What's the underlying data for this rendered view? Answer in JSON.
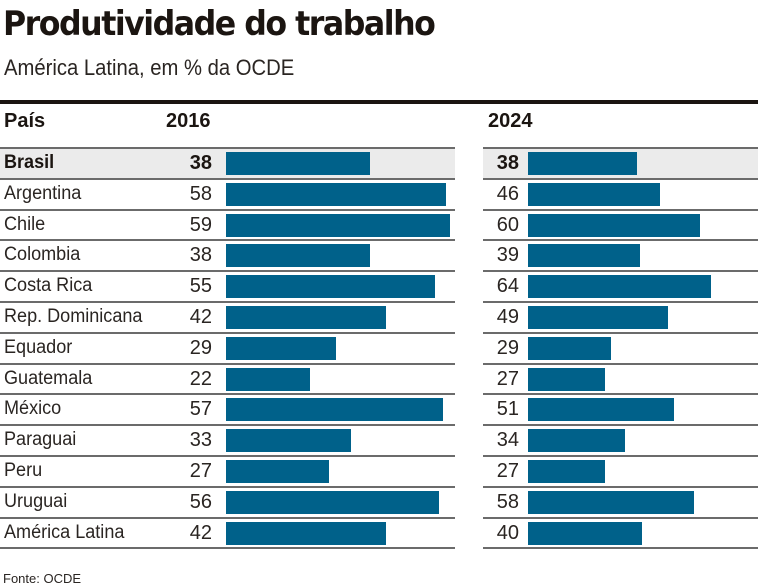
{
  "header": {
    "title": "Produtividade do trabalho",
    "subtitle": "América Latina, em % da OCDE"
  },
  "columns": {
    "country": "País",
    "year1": "2016",
    "year2": "2024"
  },
  "colors": {
    "bar": "#00618a",
    "highlight_row": "#ebebeb",
    "text": "#1b1511"
  },
  "source": "Fonte: OCDE",
  "chart_data": {
    "type": "bar",
    "title": "Produtividade do trabalho",
    "subtitle": "América Latina, em % da OCDE",
    "orientation": "horizontal",
    "categories": [
      "Brasil",
      "Argentina",
      "Chile",
      "Colombia",
      "Costa Rica",
      "Rep. Dominicana",
      "Equador",
      "Guatemala",
      "México",
      "Paraguai",
      "Peru",
      "Uruguai",
      "América Latina"
    ],
    "highlight": "Brasil",
    "series": [
      {
        "name": "2016",
        "values": [
          38,
          58,
          59,
          38,
          55,
          42,
          29,
          22,
          57,
          33,
          27,
          56,
          42
        ]
      },
      {
        "name": "2024",
        "values": [
          38,
          46,
          60,
          39,
          64,
          49,
          29,
          27,
          51,
          34,
          27,
          58,
          40
        ]
      }
    ],
    "xlabel": "",
    "ylabel": "",
    "legend": "none",
    "grid": false,
    "source": "Fonte: OCDE"
  }
}
